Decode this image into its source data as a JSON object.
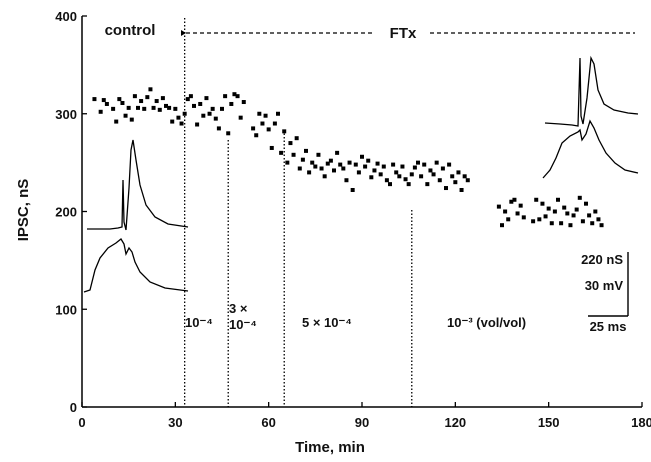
{
  "chart_data": {
    "type": "scatter",
    "xlabel": "Time, min",
    "ylabel": "IPSC, nS",
    "xlim": [
      0,
      180
    ],
    "ylim": [
      0,
      400
    ],
    "x_ticks": [
      "0",
      "30",
      "60",
      "90",
      "120",
      "150",
      "180"
    ],
    "y_ticks": [
      "0",
      "100",
      "200",
      "300",
      "400"
    ],
    "grid": false,
    "period_labels": {
      "control": "control",
      "drug": "FTx"
    },
    "drug_start_min": 33,
    "application_markers_min": [
      33,
      47,
      65,
      106
    ],
    "concentration_labels": [
      {
        "lines": [
          "10⁻⁴"
        ]
      },
      {
        "lines": [
          "3 ×",
          "10⁻⁴"
        ]
      },
      {
        "lines": [
          "5 × 10⁻⁴"
        ]
      },
      {
        "lines": [
          "10⁻³  (vol/vol)"
        ]
      }
    ],
    "scale_bar_labels": [
      "220 nS",
      "30 mV",
      "25 ms"
    ],
    "series": [
      {
        "values": [
          [
            4,
            315
          ],
          [
            6,
            302
          ],
          [
            7,
            314
          ],
          [
            8,
            310
          ],
          [
            10,
            305
          ],
          [
            11,
            292
          ],
          [
            12,
            315
          ],
          [
            13,
            311
          ],
          [
            14,
            298
          ],
          [
            15,
            306
          ],
          [
            16,
            294
          ],
          [
            17,
            318
          ],
          [
            18,
            306
          ],
          [
            19,
            313
          ],
          [
            20,
            305
          ],
          [
            21,
            317
          ],
          [
            22,
            325
          ],
          [
            23,
            306
          ],
          [
            24,
            313
          ],
          [
            25,
            304
          ],
          [
            26,
            316
          ],
          [
            27,
            308
          ],
          [
            28,
            306
          ],
          [
            29,
            292
          ],
          [
            30,
            305
          ],
          [
            31,
            296
          ],
          [
            32,
            290
          ],
          [
            33,
            300
          ],
          [
            34,
            315
          ],
          [
            35,
            318
          ],
          [
            36,
            308
          ],
          [
            37,
            289
          ],
          [
            38,
            310
          ],
          [
            39,
            298
          ],
          [
            40,
            316
          ],
          [
            41,
            300
          ],
          [
            42,
            305
          ],
          [
            43,
            295
          ],
          [
            44,
            285
          ],
          [
            45,
            305
          ],
          [
            46,
            318
          ],
          [
            47,
            280
          ],
          [
            48,
            310
          ],
          [
            49,
            320
          ],
          [
            50,
            318
          ],
          [
            51,
            296
          ],
          [
            52,
            312
          ],
          [
            55,
            285
          ],
          [
            56,
            278
          ],
          [
            57,
            300
          ],
          [
            58,
            290
          ],
          [
            59,
            298
          ],
          [
            60,
            284
          ],
          [
            61,
            265
          ],
          [
            62,
            290
          ],
          [
            63,
            300
          ],
          [
            64,
            260
          ],
          [
            65,
            282
          ],
          [
            66,
            250
          ],
          [
            67,
            270
          ],
          [
            68,
            258
          ],
          [
            69,
            275
          ],
          [
            70,
            244
          ],
          [
            71,
            253
          ],
          [
            72,
            262
          ],
          [
            73,
            240
          ],
          [
            74,
            250
          ],
          [
            75,
            246
          ],
          [
            76,
            258
          ],
          [
            77,
            244
          ],
          [
            78,
            236
          ],
          [
            79,
            249
          ],
          [
            80,
            252
          ],
          [
            81,
            242
          ],
          [
            82,
            260
          ],
          [
            83,
            248
          ],
          [
            84,
            244
          ],
          [
            85,
            232
          ],
          [
            86,
            250
          ],
          [
            87,
            222
          ],
          [
            88,
            248
          ],
          [
            89,
            240
          ],
          [
            90,
            256
          ],
          [
            91,
            246
          ],
          [
            92,
            252
          ],
          [
            93,
            235
          ],
          [
            94,
            242
          ],
          [
            95,
            249
          ],
          [
            96,
            238
          ],
          [
            97,
            246
          ],
          [
            98,
            232
          ],
          [
            99,
            228
          ],
          [
            100,
            248
          ],
          [
            101,
            240
          ],
          [
            102,
            236
          ],
          [
            103,
            246
          ],
          [
            104,
            233
          ],
          [
            105,
            228
          ],
          [
            106,
            238
          ],
          [
            107,
            245
          ],
          [
            108,
            250
          ],
          [
            109,
            236
          ],
          [
            110,
            248
          ],
          [
            111,
            228
          ],
          [
            112,
            242
          ],
          [
            113,
            238
          ],
          [
            114,
            250
          ],
          [
            115,
            232
          ],
          [
            116,
            244
          ],
          [
            117,
            224
          ],
          [
            118,
            248
          ],
          [
            119,
            236
          ],
          [
            120,
            230
          ],
          [
            121,
            240
          ],
          [
            122,
            222
          ],
          [
            123,
            236
          ],
          [
            124,
            232
          ],
          [
            134,
            205
          ],
          [
            135,
            186
          ],
          [
            136,
            200
          ],
          [
            137,
            192
          ],
          [
            138,
            210
          ],
          [
            139,
            212
          ],
          [
            140,
            198
          ],
          [
            141,
            206
          ],
          [
            142,
            194
          ],
          [
            145,
            190
          ],
          [
            146,
            212
          ],
          [
            147,
            192
          ],
          [
            148,
            208
          ],
          [
            149,
            195
          ],
          [
            150,
            203
          ],
          [
            151,
            188
          ],
          [
            152,
            200
          ],
          [
            153,
            212
          ],
          [
            154,
            188
          ],
          [
            155,
            204
          ],
          [
            156,
            198
          ],
          [
            157,
            186
          ],
          [
            158,
            196
          ],
          [
            159,
            202
          ],
          [
            160,
            214
          ],
          [
            161,
            190
          ],
          [
            162,
            208
          ],
          [
            163,
            196
          ],
          [
            164,
            188
          ],
          [
            165,
            200
          ],
          [
            166,
            192
          ],
          [
            167,
            186
          ]
        ]
      }
    ]
  }
}
